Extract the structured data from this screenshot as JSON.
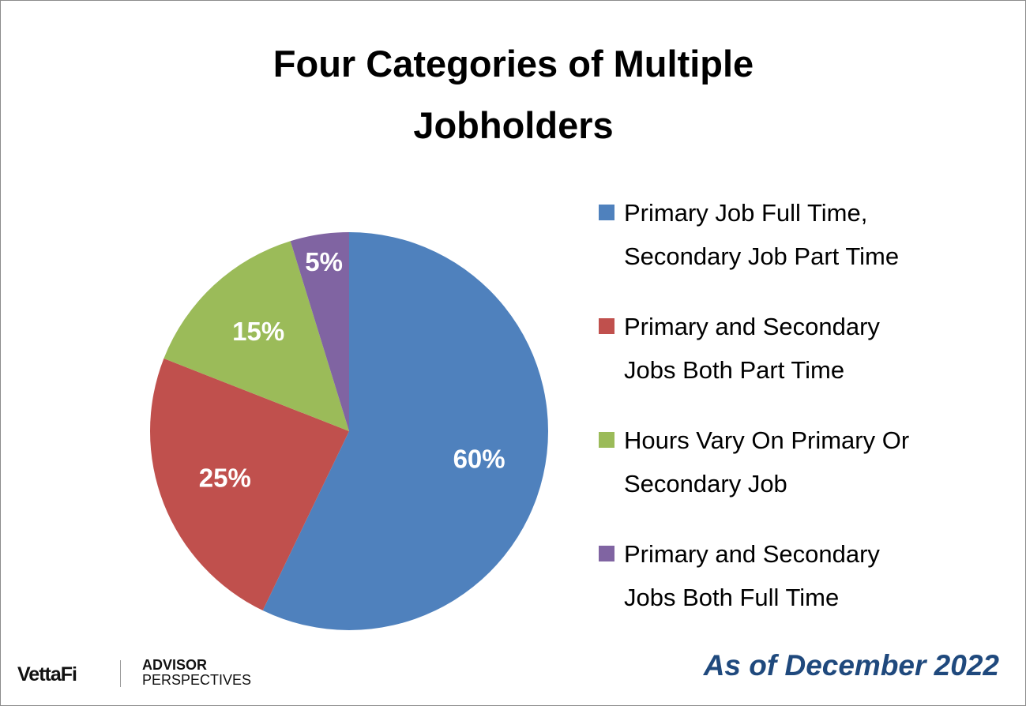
{
  "chart_data": {
    "type": "pie",
    "title": "Four Categories of Multiple Jobholders",
    "categories": [
      "Primary Job Full Time, Secondary Job Part Time",
      "Primary and Secondary Jobs Both Part Time",
      "Hours Vary On Primary Or Secondary Job",
      "Primary and Secondary Jobs Both Full Time"
    ],
    "values": [
      60,
      25,
      15,
      5
    ],
    "value_labels": [
      "60%",
      "25%",
      "15%",
      "5%"
    ],
    "colors": [
      "#4f81bd",
      "#c0504d",
      "#9bbb59",
      "#8064a2"
    ],
    "legend": "right",
    "note": "As of December 2022",
    "logos": [
      "VettaFi",
      "ADVISOR",
      "PERSPECTIVES"
    ]
  }
}
